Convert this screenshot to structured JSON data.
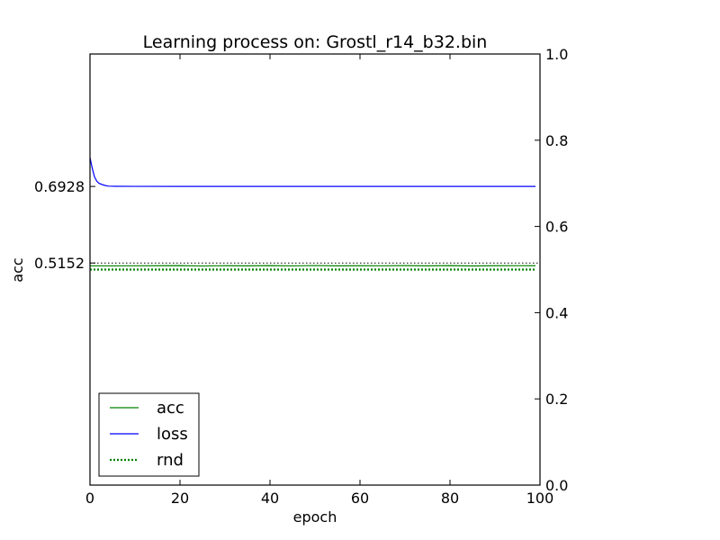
{
  "chart_data": {
    "type": "line",
    "title": "Learning process on: Grostl_r14_b32.bin",
    "xlabel": "epoch",
    "ylabel": "acc",
    "xlim": [
      0,
      100
    ],
    "ylim": [
      0,
      1
    ],
    "x_ticks": [
      "0",
      "20",
      "40",
      "60",
      "80",
      "100"
    ],
    "right_y_ticks": [
      "0.0",
      "0.2",
      "0.4",
      "0.6",
      "0.8",
      "1.0"
    ],
    "left_y_ticks": [
      "0.6928",
      "0.5152"
    ],
    "left_y_tick_values": [
      0.6928,
      0.5152
    ],
    "grid": false,
    "legend": {
      "placement": "lower-left",
      "entries": [
        "acc",
        "loss",
        "rnd"
      ]
    },
    "series": [
      {
        "name": "acc",
        "color": "#008000",
        "style": "solid",
        "x": [
          0,
          5,
          10,
          15,
          20,
          25,
          30,
          35,
          40,
          45,
          50,
          55,
          60,
          65,
          70,
          75,
          80,
          85,
          90,
          95,
          99
        ],
        "values": [
          0.5085,
          0.5085,
          0.5087,
          0.5088,
          0.5092,
          0.5082,
          0.509,
          0.5086,
          0.5092,
          0.5085,
          0.5093,
          0.5086,
          0.5088,
          0.5087,
          0.5091,
          0.5086,
          0.5092,
          0.5084,
          0.5088,
          0.509,
          0.5089
        ]
      },
      {
        "name": "loss",
        "color": "#0000ff",
        "style": "solid",
        "x": [
          0,
          0.5,
          1,
          1.5,
          2,
          3,
          4,
          5,
          10,
          20,
          30,
          40,
          50,
          60,
          70,
          80,
          90,
          99
        ],
        "values": [
          0.76,
          0.735,
          0.715,
          0.705,
          0.7,
          0.696,
          0.6935,
          0.6932,
          0.693,
          0.6929,
          0.6928,
          0.6928,
          0.6928,
          0.6928,
          0.6928,
          0.6928,
          0.6928,
          0.6928
        ]
      },
      {
        "name": "rnd",
        "color": "#008000",
        "style": "dotted",
        "x": [
          0,
          99
        ],
        "values": [
          0.5,
          0.5
        ]
      }
    ],
    "reference_lines": [
      {
        "value": 0.5152,
        "color": "#000000",
        "style": "dotted"
      }
    ]
  }
}
